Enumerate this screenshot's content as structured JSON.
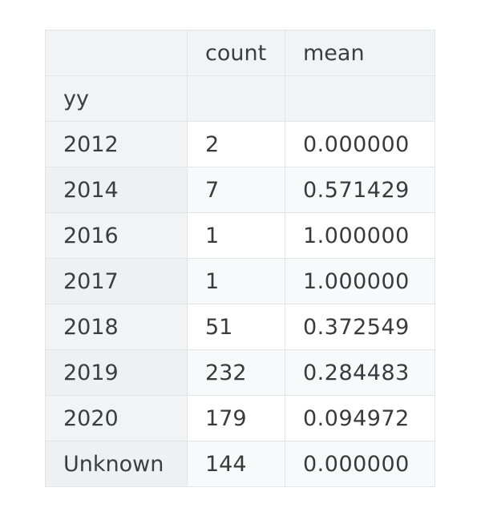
{
  "table": {
    "columns": [
      "",
      "count",
      "mean"
    ],
    "index_name": "yy",
    "rows": [
      {
        "index": "2012",
        "count": "2",
        "mean": "0.000000"
      },
      {
        "index": "2014",
        "count": "7",
        "mean": "0.571429"
      },
      {
        "index": "2016",
        "count": "1",
        "mean": "1.000000"
      },
      {
        "index": "2017",
        "count": "1",
        "mean": "1.000000"
      },
      {
        "index": "2018",
        "count": "51",
        "mean": "0.372549"
      },
      {
        "index": "2019",
        "count": "232",
        "mean": "0.284483"
      },
      {
        "index": "2020",
        "count": "179",
        "mean": "0.094972"
      },
      {
        "index": "Unknown",
        "count": "144",
        "mean": "0.000000"
      }
    ]
  },
  "chart_data": {
    "type": "table",
    "columns": [
      "count",
      "mean"
    ],
    "index_name": "yy",
    "index": [
      "2012",
      "2014",
      "2016",
      "2017",
      "2018",
      "2019",
      "2020",
      "Unknown"
    ],
    "count": [
      2,
      7,
      1,
      1,
      51,
      232,
      179,
      144
    ],
    "mean": [
      0.0,
      0.571429,
      1.0,
      1.0,
      0.372549,
      0.284483,
      0.094972,
      0.0
    ]
  }
}
